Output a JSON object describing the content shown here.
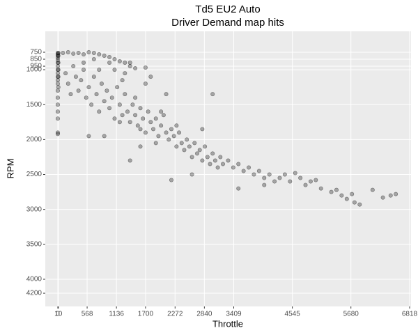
{
  "chart_data": {
    "type": "scatter",
    "title": "Td5 EU2 Auto",
    "subtitle": "Driver Demand map hits",
    "xlabel": "Throttle",
    "ylabel": "RPM",
    "xlim": [
      -243,
      6845
    ],
    "ylim": [
      451,
      4389
    ],
    "y_reverse": true,
    "grid": true,
    "xticks": [
      0,
      10,
      568,
      1136,
      1700,
      2272,
      2840,
      3409,
      4545,
      5680,
      6818
    ],
    "yticks": [
      750,
      850,
      950,
      1000,
      1500,
      2000,
      2500,
      3000,
      3500,
      4000,
      4200
    ],
    "series": [
      {
        "color": "#000000",
        "x": [
          0,
          0,
          0,
          0,
          0,
          0,
          0,
          0,
          0,
          0,
          0,
          0,
          0,
          0,
          0,
          0,
          0,
          0,
          0,
          10,
          10,
          10,
          10,
          10,
          10,
          100,
          200,
          300,
          400,
          500,
          600,
          700,
          800,
          900,
          1000,
          1100,
          1200,
          1300,
          1400,
          1500,
          1700,
          150,
          200,
          250,
          300,
          350,
          400,
          450,
          500,
          550,
          600,
          650,
          700,
          750,
          800,
          850,
          900,
          950,
          1000,
          1050,
          1100,
          1150,
          1200,
          1250,
          1300,
          1350,
          1400,
          1450,
          1500,
          1550,
          1600,
          1650,
          1700,
          1750,
          1800,
          1850,
          1900,
          1950,
          2000,
          2050,
          2100,
          2150,
          2200,
          2250,
          2300,
          2350,
          2400,
          2450,
          2500,
          2550,
          2600,
          2650,
          2700,
          2750,
          2800,
          2850,
          2900,
          2950,
          3000,
          3050,
          3100,
          3150,
          3200,
          3300,
          3400,
          3500,
          3600,
          3700,
          3800,
          3900,
          4000,
          4100,
          4200,
          4300,
          4400,
          4500,
          4600,
          4700,
          4800,
          4900,
          5000,
          5100,
          5300,
          5400,
          5500,
          5600,
          5700,
          5750,
          5850,
          6100,
          6300,
          6450,
          6550,
          1100,
          1400,
          1800,
          2100,
          2800,
          3000,
          1400,
          1600,
          2200,
          900,
          600,
          3500,
          4000,
          2600,
          1300,
          1000,
          1700,
          1200,
          1500,
          1600,
          1900,
          2000,
          2300,
          800,
          700,
          500,
          1250
        ],
        "values": [
          760,
          780,
          800,
          830,
          860,
          900,
          950,
          1000,
          1050,
          1100,
          1150,
          1200,
          1300,
          1400,
          1500,
          1600,
          1700,
          1900,
          1920,
          760,
          800,
          900,
          1000,
          1100,
          1250,
          760,
          750,
          770,
          760,
          780,
          750,
          760,
          780,
          800,
          820,
          850,
          880,
          900,
          950,
          980,
          970,
          1050,
          1200,
          1350,
          950,
          1100,
          1300,
          1150,
          1000,
          1400,
          1250,
          1500,
          1100,
          1350,
          1600,
          1200,
          1450,
          1300,
          1550,
          1400,
          1700,
          1250,
          1500,
          1650,
          1350,
          1600,
          1750,
          1500,
          1650,
          1800,
          1550,
          1700,
          1900,
          1600,
          1750,
          1850,
          1700,
          1950,
          1800,
          1650,
          1900,
          2000,
          1850,
          1950,
          2100,
          1900,
          2050,
          2150,
          2000,
          2100,
          2250,
          2050,
          2200,
          2150,
          2300,
          2100,
          2250,
          2350,
          2200,
          2300,
          2400,
          2250,
          2350,
          2300,
          2400,
          2350,
          2450,
          2400,
          2500,
          2450,
          2550,
          2500,
          2600,
          2550,
          2500,
          2600,
          2480,
          2550,
          2650,
          2600,
          2580,
          2700,
          2750,
          2720,
          2800,
          2850,
          2780,
          2900,
          2930,
          2720,
          2830,
          2800,
          2780,
          1000,
          900,
          1100,
          1350,
          1850,
          1350,
          2300,
          2100,
          2580,
          1950,
          1950,
          2700,
          2650,
          2500,
          1050,
          900,
          1200,
          1750,
          1400,
          1850,
          2050,
          1600,
          1800,
          1000,
          850,
          900,
          1150
        ]
      }
    ]
  }
}
